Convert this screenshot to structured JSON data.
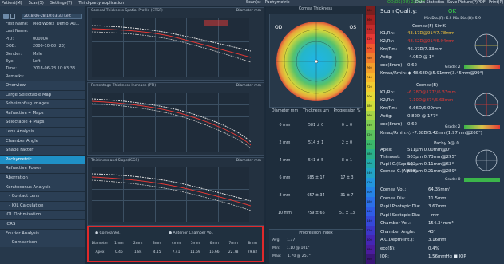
{
  "menu": [
    "Patient(M)",
    "Scan(S)",
    "Settings(T)",
    "Third-party application"
  ],
  "scan_label": "Scan(s) - Pachymetric",
  "scan_status": "OD/OS(OU) 2/2024",
  "right_menu": [
    "Data Statistics",
    "Save Picture(P)",
    "PDF",
    "Print(P)"
  ],
  "patient": {
    "combo_value": "2018-06-28  10:03:33  Left",
    "rows": [
      {
        "label": "First Name:",
        "value": "MediWorks_Demo_Au..."
      },
      {
        "label": "Last Name:",
        "value": ""
      },
      {
        "label": "PID:",
        "value": "000004"
      },
      {
        "label": "DOB:",
        "value": "2000-10-08 (23)"
      },
      {
        "label": "Gender:",
        "value": "Male"
      },
      {
        "label": "Eye:",
        "value": "Left"
      },
      {
        "label": "Time:",
        "value": "2018-06-28 10:03:33"
      },
      {
        "label": "Remarks:",
        "value": ""
      }
    ]
  },
  "nav": [
    {
      "label": "Overview",
      "type": "item"
    },
    {
      "label": "Large Selectable Map",
      "type": "item"
    },
    {
      "label": "Scheimpflug Images",
      "type": "item"
    },
    {
      "label": "Refractive 4 Maps",
      "type": "item"
    },
    {
      "label": "Selectable 4 Maps",
      "type": "item"
    },
    {
      "label": "Lens Analysis",
      "type": "item"
    },
    {
      "label": "Chamber Angle",
      "type": "item"
    },
    {
      "label": "Shape Factor",
      "type": "item"
    },
    {
      "label": "Pachymetric",
      "type": "active"
    },
    {
      "label": "Refractive Power",
      "type": "item"
    },
    {
      "label": "Aberration",
      "type": "item"
    },
    {
      "label": "Keratoconus Analysis",
      "type": "item"
    },
    {
      "label": "Contact Lens",
      "type": "sub"
    },
    {
      "label": "IOL Calculation",
      "type": "sub"
    },
    {
      "label": "IOL Optimization",
      "type": "item"
    },
    {
      "label": "ICRS",
      "type": "item"
    },
    {
      "label": "Fourier Analysis",
      "type": "item"
    },
    {
      "label": "Comparison",
      "type": "sub"
    }
  ],
  "plots": [
    {
      "title": "Corneal Thickness Spatial Profile (CTSP)",
      "right_label": "Diameter mm"
    },
    {
      "title": "Percentage Thickness Increase (PTI)",
      "right_label": "Diameter mm"
    },
    {
      "title": "Thickness and Slope(ISGS)",
      "right_label": "Diameter mm"
    }
  ],
  "volume_table": {
    "legend_a": "Cornea Vol.",
    "legend_b": "Anterior Chamber Vol.",
    "header": [
      "Diameter",
      "1mm",
      "2mm",
      "3mm",
      "4mm",
      "5mm",
      "6mm",
      "7mm",
      "8mm"
    ],
    "row_label": "Apex",
    "values": [
      "0.46",
      "1.84",
      "4.15",
      "7.41",
      "11.59",
      "16.66",
      "22.78",
      "29.82"
    ]
  },
  "center": {
    "map_header": "Cornea Thickness",
    "od": "OD",
    "os": "OS",
    "table_header": [
      "Diameter mm",
      "Thickness µm",
      "Progression %"
    ],
    "table_rows": [
      {
        "d": "0 mm",
        "t": "581 ± 0",
        "p": "0 ± 0"
      },
      {
        "d": "2 mm",
        "t": "514 ± 1",
        "p": "2 ± 0"
      },
      {
        "d": "4 mm",
        "t": "541 ± 5",
        "p": "8 ± 1"
      },
      {
        "d": "6 mm",
        "t": "585 ± 17",
        "p": "17 ± 3"
      },
      {
        "d": "8 mm",
        "t": "657 ± 34",
        "p": "31 ± 7"
      },
      {
        "d": "10 mm",
        "t": "759 ± 66",
        "p": "51 ± 13"
      }
    ],
    "prog_index_title": "Progression Index",
    "prog_index": [
      {
        "k": "Avg:",
        "v": "1.37"
      },
      {
        "k": "Min:",
        "v": "1.10 @ 101°"
      },
      {
        "k": "Max:",
        "v": "1.70 @ 257°"
      }
    ]
  },
  "colorbar": [
    "880",
    "860",
    "840",
    "820",
    "800",
    "780",
    "760",
    "740",
    "720",
    "700",
    "680",
    "660",
    "640",
    "620",
    "600",
    "580",
    "560",
    "540",
    "520",
    "500",
    "480",
    "460",
    "440",
    "420",
    "400",
    "380",
    "360"
  ],
  "right": {
    "scan_quality_label": "Scan Quality:",
    "scan_quality_value": "OK",
    "mindia": "Min Dia.(F): 6.2   Min Dia.(B): 5.9",
    "cornea_f_title": "Cornea(F) SimK",
    "cornea_f": [
      {
        "k": "K1/Rh:",
        "v": "43.17D@91°/7.78mm",
        "cls": "ry"
      },
      {
        "k": "K2/Rv:",
        "v": "48.62D@01°/6.94mm",
        "cls": "rr"
      },
      {
        "k": "Km/Rm:",
        "v": "46.07D/7.33mm",
        "cls": ""
      },
      {
        "k": "Astig:",
        "v": "-4.95D @ 1°",
        "cls": ""
      },
      {
        "k": "ecc(8mm):",
        "v": "0.62",
        "cls": ""
      }
    ],
    "grade_f": "Grade: 2",
    "kmax_f": "Kmax/Rmin: ◆ 48.68D@5.91mm(3.45mm@99°)",
    "cornea_b_title": "Cornea(B)",
    "cornea_b": [
      {
        "k": "K1/Rh:",
        "v": "-6.28D@177°/6.37mm",
        "cls": "rr"
      },
      {
        "k": "K2/Rv:",
        "v": "-7.10D@87°/5.63mm",
        "cls": "rr"
      },
      {
        "k": "Km/Rm:",
        "v": "-6.66D/6.00mm",
        "cls": ""
      },
      {
        "k": "Astig:",
        "v": "0.82D @ 177°",
        "cls": ""
      },
      {
        "k": "ecc(8mm):",
        "v": "0.62",
        "cls": ""
      }
    ],
    "grade_b": "Grade: 2",
    "kmax_b": "Kmax/Rmin: ◇ -7.38D/5.42mm(1.97mm@260°)",
    "pachy_title": "Pachy          X@ 0",
    "pachy": [
      {
        "k": "Apex:",
        "v": "511µm      0.00mm@0°"
      },
      {
        "k": "Thinnest:",
        "v": "503µm  0.73mm@295°"
      },
      {
        "k": "Pupil C.(Kappa):",
        "v": "512µm  0.11mm@63°"
      },
      {
        "k": "Cornea C.(Alpha):",
        "v": "505µm  0.21mm@289°"
      }
    ],
    "grade_p": "Grade: 0",
    "vol": [
      {
        "k": "Cornea Vol.:",
        "v": "64.35mm³"
      },
      {
        "k": "Cornea Dia:",
        "v": "11.5mm"
      },
      {
        "k": "Pupil Photopic Dia:",
        "v": "3.67mm"
      },
      {
        "k": "Pupil Scotopic Dia:",
        "v": "--mm"
      },
      {
        "k": "Chamber Vol.:",
        "v": "154.34mm³"
      },
      {
        "k": "Chamber Angle:",
        "v": "43°"
      },
      {
        "k": "A.C.Depth(Int.):",
        "v": "3.16mm"
      },
      {
        "k": "ecc(B):",
        "v": "0.4%"
      },
      {
        "k": "IOP:",
        "v": "1.56mmHg  ■ IOP"
      }
    ]
  }
}
